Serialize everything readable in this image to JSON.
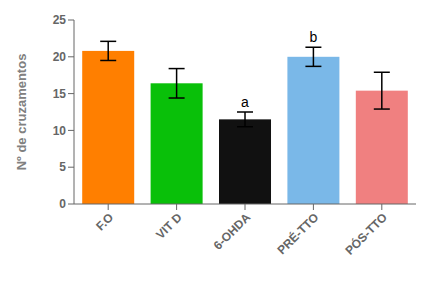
{
  "chart_data": {
    "type": "bar",
    "categories": [
      "F.O",
      "VIT D",
      "6-OHDA",
      "PRÉ-TTO",
      "PÓS-TTO"
    ],
    "values": [
      20.8,
      16.4,
      11.5,
      20.0,
      15.4
    ],
    "errors": [
      1.3,
      2.0,
      1.0,
      1.3,
      2.5
    ],
    "colors": [
      "#FF7F00",
      "#09C009",
      "#111111",
      "#7AB8E8",
      "#F08080"
    ],
    "ylabel": "Nº de cruzamentos",
    "ylim": [
      0,
      25
    ],
    "yticks": [
      0,
      5,
      10,
      15,
      20,
      25
    ],
    "annotations": [
      {
        "category": "6-OHDA",
        "label": "a"
      },
      {
        "category": "PRÉ-TTO",
        "label": "b"
      }
    ],
    "grid": false
  }
}
